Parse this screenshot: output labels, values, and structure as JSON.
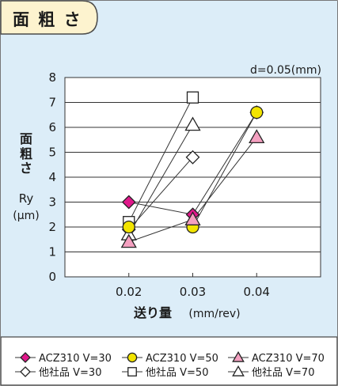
{
  "header": {
    "title": "面 粗 さ"
  },
  "colors": {
    "panel_bg": "#dcedf8",
    "header_tab_bg": "#fdf3cf",
    "border": "#4a4a4a",
    "acz_v30": "#e0188a",
    "acz_v50": "#f2e400",
    "acz_v70": "#f4a0c0",
    "other_fill": "#ffffff"
  },
  "chart_data": {
    "type": "line",
    "annotation": "d=0.05(mm)",
    "ylabel_lines": [
      "面",
      "粗",
      "さ"
    ],
    "ylabel_symbol": "Ry",
    "ylabel_unit": "(μm)",
    "xlabel_main": "送り量",
    "xlabel_unit": "(mm/rev)",
    "x": [
      0.02,
      0.03,
      0.04
    ],
    "x_tick_labels": [
      "0.02",
      "0.03",
      "0.04"
    ],
    "ylim": [
      0,
      8
    ],
    "y_ticks": [
      0,
      1,
      2,
      3,
      4,
      5,
      6,
      7,
      8
    ],
    "grid": "horizontal",
    "legend_position": "bottom",
    "series": [
      {
        "name": "ACZ310 V=30",
        "marker": "diamond",
        "filled": true,
        "color": "#e0188a",
        "values": [
          3.0,
          2.5,
          6.6
        ]
      },
      {
        "name": "ACZ310 V=50",
        "marker": "circle",
        "filled": true,
        "color": "#f2e400",
        "values": [
          2.0,
          2.0,
          6.6
        ]
      },
      {
        "name": "ACZ310 V=70",
        "marker": "triangle",
        "filled": true,
        "color": "#f4a0c0",
        "values": [
          1.4,
          2.3,
          5.6
        ]
      },
      {
        "name": "他社品 V=30",
        "marker": "diamond",
        "filled": false,
        "color": "#ffffff",
        "values": [
          1.9,
          4.8,
          null
        ]
      },
      {
        "name": "他社品 V=50",
        "marker": "square",
        "filled": false,
        "color": "#ffffff",
        "values": [
          2.2,
          7.2,
          null
        ]
      },
      {
        "name": "他社品 V=70",
        "marker": "triangle",
        "filled": false,
        "color": "#ffffff",
        "values": [
          1.7,
          6.1,
          null
        ]
      }
    ]
  }
}
